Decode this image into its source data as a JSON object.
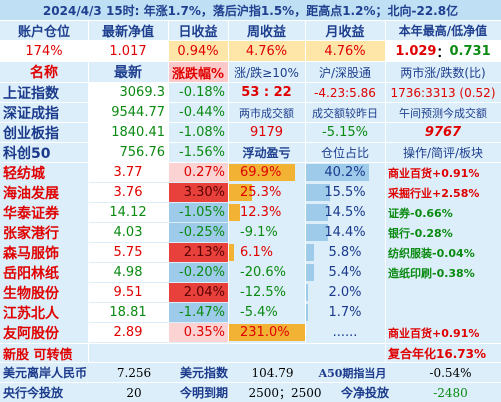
{
  "header": {
    "banner": "2024/4/3  15时: 年涨1.7%，落后沪指1.5%，距高点1.2%；北向-22.8亿"
  },
  "account": {
    "headers": [
      "账户仓位",
      "最新净值",
      "日收益",
      "周收益",
      "月收益",
      "本年最高/低净值"
    ],
    "values": [
      "174%",
      "1.017",
      "0.94%",
      "4.76%",
      "4.76%"
    ],
    "year_high": "1.029",
    "sep": "：",
    "year_low": "0.731"
  },
  "index_table": {
    "headers": [
      "名称",
      "最新",
      "涨跌幅%",
      "涨/跌≥10%",
      "沪/深股通",
      "两市涨/跌数(比)"
    ],
    "rows": [
      {
        "name": "上证指数",
        "price": "3069.3",
        "change": "-0.18%",
        "change_pct": -0.18,
        "c4": "53 : 22",
        "c5": "-4.23:5.86",
        "c6": "1736:3313 (0.52)"
      },
      {
        "name": "深证成指",
        "price": "9544.77",
        "change": "-0.44%",
        "change_pct": -0.44,
        "c4": "两市成交额",
        "c5": "成交额较昨日",
        "c6": "午间预测今成交额"
      },
      {
        "name": "创业板指",
        "price": "1840.41",
        "change": "-1.08%",
        "change_pct": -1.08,
        "c4": "9179",
        "c5": "-5.15%",
        "c6": "9767"
      },
      {
        "name": "科创50",
        "price": "756.76",
        "change": "-1.56%",
        "change_pct": -1.56,
        "c4": "浮动盈亏",
        "c5": "仓位占比",
        "c6": "操作/简评/板块"
      }
    ]
  },
  "holdings": [
    {
      "name": "轻纺城",
      "price": "3.77",
      "change": "0.27%",
      "pnl": "69.9%",
      "pnl_pct": 69.9,
      "weight": "40.2%",
      "weight_pct": 40.2,
      "note": "商业百货+0.91%"
    },
    {
      "name": "海油发展",
      "price": "3.76",
      "change": "3.30%",
      "pnl": "25.3%",
      "pnl_pct": 25.3,
      "weight": "15.5%",
      "weight_pct": 15.5,
      "note": "采掘行业+2.58%"
    },
    {
      "name": "华泰证券",
      "price": "14.12",
      "change": "-1.05%",
      "pnl": "12.3%",
      "pnl_pct": 12.3,
      "weight": "14.5%",
      "weight_pct": 14.5,
      "note": "证券-0.66%"
    },
    {
      "name": "张家港行",
      "price": "4.03",
      "change": "-0.25%",
      "pnl": "-9.1%",
      "pnl_pct": -9.1,
      "weight": "14.4%",
      "weight_pct": 14.4,
      "note": "银行-0.28%"
    },
    {
      "name": "森马服饰",
      "price": "5.75",
      "change": "2.13%",
      "pnl": "6.1%",
      "pnl_pct": 6.1,
      "weight": "5.8%",
      "weight_pct": 5.8,
      "note": "纺织服装-0.04%"
    },
    {
      "name": "岳阳林纸",
      "price": "4.98",
      "change": "-0.20%",
      "pnl": "-20.6%",
      "pnl_pct": -20.6,
      "weight": "5.4%",
      "weight_pct": 5.4,
      "note": "造纸印刷-0.38%"
    },
    {
      "name": "生物股份",
      "price": "9.51",
      "change": "2.04%",
      "pnl": "-12.5%",
      "pnl_pct": -12.5,
      "weight": "2.0%",
      "weight_pct": 2.0,
      "note": ""
    },
    {
      "name": "江苏北人",
      "price": "18.81",
      "change": "-1.47%",
      "pnl": "-5.4%",
      "pnl_pct": -5.4,
      "weight": "1.7%",
      "weight_pct": 1.7,
      "note": ""
    },
    {
      "name": "友阿股份",
      "price": "2.89",
      "change": "0.35%",
      "pnl": "231.0%",
      "pnl_pct": 231.0,
      "weight": "......",
      "weight_pct": 0,
      "note": "商业百货+0.91%"
    }
  ],
  "footer": {
    "new_stock": "新股 可转债",
    "annualized": "复合年化16.73%",
    "row1": {
      "l1": "美元离岸人民币",
      "v1": "7.256",
      "l2": "美元指数",
      "v2": "104.79",
      "l3": "A50期指当月",
      "v3": "-0.54%"
    },
    "row2": {
      "l1": "央行今投放",
      "v1": "20",
      "l2": "今明到期",
      "v2": "2500；2500",
      "l3": "今净投放",
      "v3": "-2480"
    }
  },
  "colors": {
    "background": "#dbeef9",
    "header_band": "#bfe0f4",
    "red": "#e00000",
    "green": "#0b8a12",
    "navy": "#1b3a8c",
    "orange_bar": "#f2b233",
    "blue_bar": "#9ecbea"
  }
}
